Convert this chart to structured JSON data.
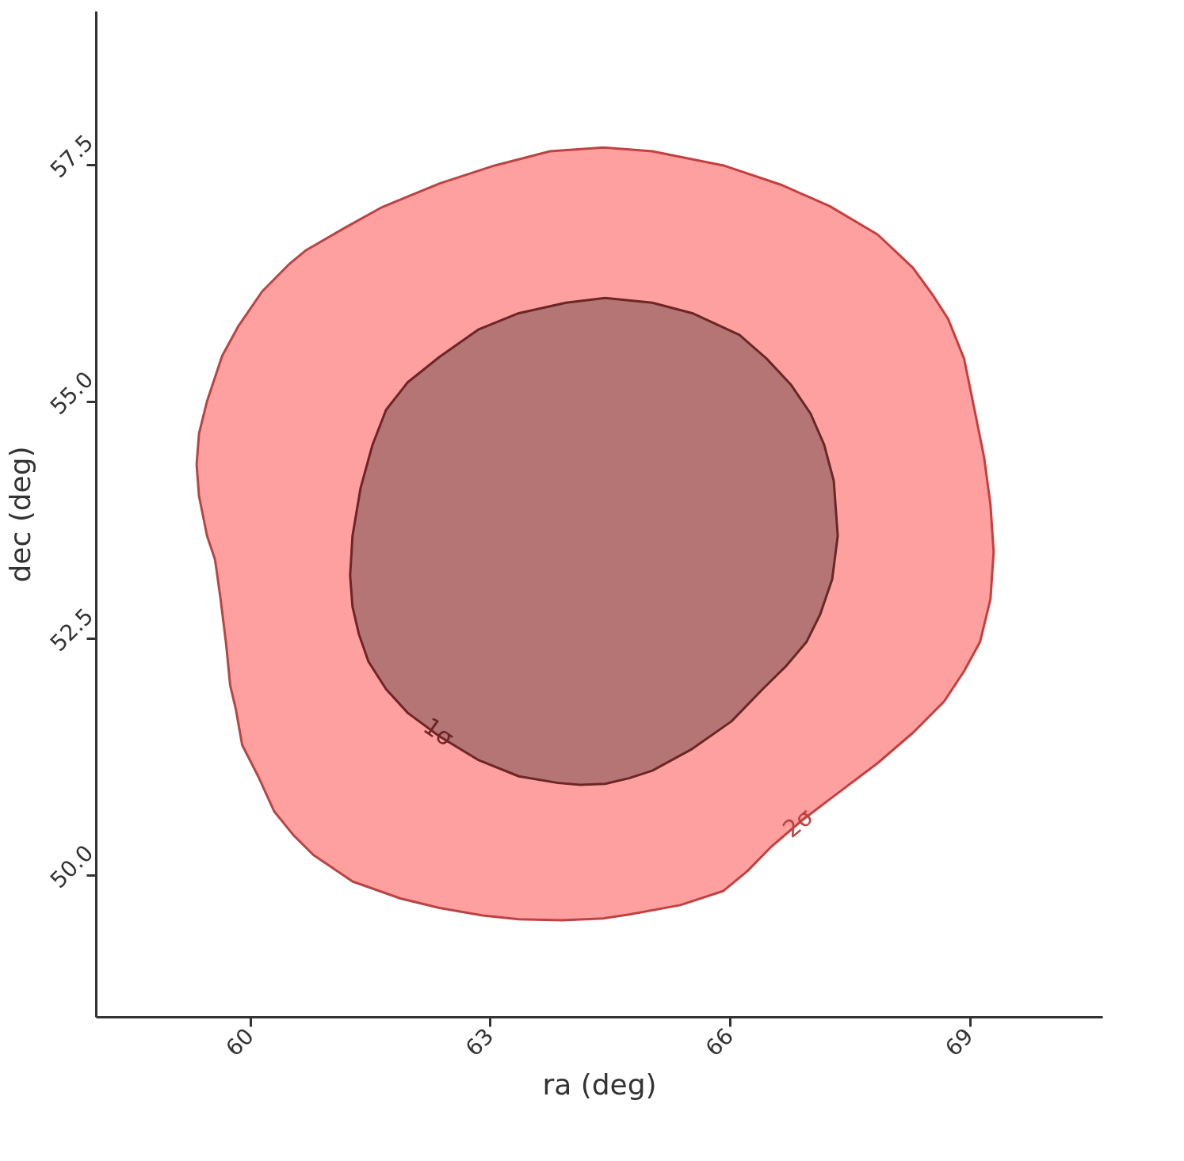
{
  "chart_data": {
    "type": "area",
    "xlabel": "ra (deg)",
    "ylabel": "dec (deg)",
    "xlim": [
      58.07,
      70.66
    ],
    "ylim": [
      48.5,
      59.12
    ],
    "xticks": [
      60,
      63,
      66,
      69
    ],
    "yticks": [
      {
        "value": 50,
        "label": "50.0"
      },
      52.5,
      {
        "value": 55,
        "label": "55.0"
      },
      57.5
    ],
    "grid": false,
    "series": [
      {
        "color": "#ffa0a0",
        "x": [
          64.42,
          65.03,
          65.92,
          66.66,
          67.25,
          67.85,
          68.29,
          68.54,
          68.73,
          68.93,
          69.08,
          69.18,
          69.26,
          69.3,
          69.26,
          69.13,
          68.93,
          68.68,
          68.29,
          67.85,
          67.3,
          66.91,
          66.51,
          66.22,
          65.92,
          65.38,
          64.74,
          64.42,
          63.9,
          63.36,
          62.91,
          62.37,
          61.88,
          61.28,
          60.79,
          60.54,
          60.3,
          60.1,
          59.9,
          59.82,
          59.75,
          59.7,
          59.63,
          59.56,
          59.46,
          59.36,
          59.33,
          59.36,
          59.46,
          59.65,
          59.85,
          60.15,
          60.49,
          60.69,
          61.18,
          61.65,
          62.37,
          63.06,
          63.75,
          64.42
        ],
        "values": [
          57.68,
          57.64,
          57.49,
          57.28,
          57.06,
          56.76,
          56.41,
          56.12,
          55.87,
          55.45,
          54.83,
          54.41,
          53.91,
          53.41,
          52.91,
          52.46,
          52.15,
          51.83,
          51.5,
          51.18,
          50.83,
          50.58,
          50.29,
          50.04,
          49.83,
          49.68,
          49.58,
          49.54,
          49.52,
          49.53,
          49.57,
          49.65,
          49.75,
          49.93,
          50.21,
          50.42,
          50.67,
          51.04,
          51.37,
          51.75,
          52.0,
          52.43,
          52.91,
          53.33,
          53.58,
          54.0,
          54.33,
          54.66,
          55.0,
          55.48,
          55.79,
          56.16,
          56.45,
          56.59,
          56.83,
          57.05,
          57.3,
          57.49,
          57.64,
          57.68
        ]
      },
      {
        "color": "#b57575",
        "x": [
          64.44,
          65.03,
          65.53,
          66.12,
          66.46,
          66.76,
          67.01,
          67.18,
          67.3,
          67.35,
          67.28,
          67.13,
          66.96,
          66.71,
          66.41,
          66.02,
          65.53,
          65.03,
          64.74,
          64.44,
          64.13,
          63.85,
          63.36,
          62.86,
          62.37,
          61.97,
          61.7,
          61.48,
          61.36,
          61.28,
          61.25,
          61.28,
          61.38,
          61.53,
          61.7,
          61.97,
          62.37,
          62.86,
          63.36,
          63.95,
          64.44
        ],
        "values": [
          56.09,
          56.04,
          55.93,
          55.7,
          55.45,
          55.18,
          54.87,
          54.54,
          54.16,
          53.58,
          53.12,
          52.75,
          52.46,
          52.21,
          51.96,
          51.62,
          51.33,
          51.1,
          51.02,
          50.96,
          50.95,
          50.97,
          51.04,
          51.21,
          51.46,
          51.71,
          51.96,
          52.25,
          52.54,
          52.83,
          53.16,
          53.58,
          54.08,
          54.54,
          54.91,
          55.2,
          55.47,
          55.76,
          55.93,
          56.04,
          56.09
        ]
      }
    ],
    "annotations": [
      {
        "text": "1σ",
        "x": 62.35,
        "y": 51.5
      },
      {
        "text": "2σ",
        "x": 66.86,
        "y": 50.54
      }
    ]
  }
}
